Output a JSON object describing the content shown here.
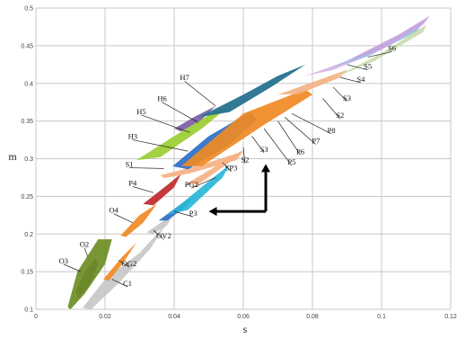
{
  "chart_data": {
    "type": "area",
    "xlabel": "s",
    "ylabel": "m",
    "xlim": [
      0,
      0.12
    ],
    "ylim": [
      0.1,
      0.5
    ],
    "xticks": [
      "0",
      "0.02",
      "0.04",
      "0.06",
      "0.08",
      "0.1",
      "0.12"
    ],
    "yticks": [
      "0.1",
      "0.15",
      "0.2",
      "0.25",
      "0.3",
      "0.35",
      "0.4",
      "0.45",
      "0.5"
    ],
    "xtick_values": [
      0,
      0.02,
      0.04,
      0.06,
      0.08,
      0.1,
      0.12
    ],
    "ytick_values": [
      0.1,
      0.15,
      0.2,
      0.25,
      0.3,
      0.35,
      0.4,
      0.45,
      0.5
    ],
    "grid": true,
    "regions": [
      {
        "name": "O3",
        "color": "#5a2d82",
        "points": [
          [
            0.0115,
            0.124
          ],
          [
            0.0145,
            0.152
          ],
          [
            0.0172,
            0.168
          ],
          [
            0.018,
            0.16
          ],
          [
            0.0155,
            0.132
          ],
          [
            0.0122,
            0.115
          ]
        ]
      },
      {
        "name": "O2",
        "color": "#6b8e23",
        "points": [
          [
            0.0092,
            0.103
          ],
          [
            0.012,
            0.15
          ],
          [
            0.018,
            0.193
          ],
          [
            0.022,
            0.193
          ],
          [
            0.02,
            0.16
          ],
          [
            0.014,
            0.12
          ],
          [
            0.01,
            0.1
          ]
        ]
      },
      {
        "name": "C1",
        "color": "#c8c8c8",
        "points": [
          [
            0.0135,
            0.102
          ],
          [
            0.02,
            0.14
          ],
          [
            0.03,
            0.175
          ],
          [
            0.038,
            0.215
          ],
          [
            0.033,
            0.18
          ],
          [
            0.024,
            0.135
          ],
          [
            0.016,
            0.1
          ]
        ]
      },
      {
        "name": "OG2",
        "color": "#f08a24",
        "points": [
          [
            0.0195,
            0.14
          ],
          [
            0.025,
            0.17
          ],
          [
            0.029,
            0.188
          ],
          [
            0.025,
            0.16
          ],
          [
            0.021,
            0.138
          ]
        ]
      },
      {
        "name": "O4",
        "color": "#f08a24",
        "points": [
          [
            0.0245,
            0.198
          ],
          [
            0.03,
            0.225
          ],
          [
            0.035,
            0.24
          ],
          [
            0.031,
            0.215
          ],
          [
            0.026,
            0.196
          ]
        ]
      },
      {
        "name": "OV2",
        "color": "#c8c8c8",
        "points": [
          [
            0.032,
            0.202
          ],
          [
            0.037,
            0.218
          ],
          [
            0.04,
            0.228
          ],
          [
            0.038,
            0.212
          ],
          [
            0.034,
            0.2
          ]
        ]
      },
      {
        "name": "P3",
        "color": "#2a6fc9",
        "points": [
          [
            0.0355,
            0.218
          ],
          [
            0.042,
            0.24
          ],
          [
            0.046,
            0.25
          ],
          [
            0.043,
            0.235
          ],
          [
            0.038,
            0.218
          ]
        ]
      },
      {
        "name": "PG2",
        "color": "#29b6d8",
        "points": [
          [
            0.038,
            0.225
          ],
          [
            0.05,
            0.27
          ],
          [
            0.056,
            0.292
          ],
          [
            0.054,
            0.275
          ],
          [
            0.044,
            0.232
          ]
        ]
      },
      {
        "name": "P4",
        "color": "#c0282d",
        "points": [
          [
            0.031,
            0.24
          ],
          [
            0.038,
            0.265
          ],
          [
            0.042,
            0.28
          ],
          [
            0.04,
            0.262
          ],
          [
            0.034,
            0.238
          ]
        ]
      },
      {
        "name": "S1",
        "color": "#f4b183",
        "points": [
          [
            0.036,
            0.278
          ],
          [
            0.048,
            0.292
          ],
          [
            0.06,
            0.31
          ],
          [
            0.058,
            0.298
          ],
          [
            0.044,
            0.28
          ],
          [
            0.037,
            0.274
          ]
        ]
      },
      {
        "name": "SP3",
        "color": "#f4b183",
        "points": [
          [
            0.043,
            0.265
          ],
          [
            0.052,
            0.29
          ],
          [
            0.06,
            0.312
          ],
          [
            0.056,
            0.295
          ],
          [
            0.047,
            0.266
          ]
        ]
      },
      {
        "name": "H3",
        "color": "#2a6fc9",
        "points": [
          [
            0.0395,
            0.29
          ],
          [
            0.05,
            0.33
          ],
          [
            0.062,
            0.362
          ],
          [
            0.064,
            0.352
          ],
          [
            0.056,
            0.318
          ],
          [
            0.044,
            0.286
          ]
        ]
      },
      {
        "name": "H5",
        "color": "#9acd32",
        "points": [
          [
            0.029,
            0.298
          ],
          [
            0.04,
            0.33
          ],
          [
            0.05,
            0.358
          ],
          [
            0.056,
            0.37
          ],
          [
            0.048,
            0.34
          ],
          [
            0.036,
            0.302
          ]
        ]
      },
      {
        "name": "H6",
        "color": "#7b5ea7",
        "points": [
          [
            0.04,
            0.34
          ],
          [
            0.046,
            0.356
          ],
          [
            0.052,
            0.37
          ],
          [
            0.048,
            0.352
          ],
          [
            0.042,
            0.336
          ]
        ]
      },
      {
        "name": "H7",
        "color": "#1f6e8c",
        "points": [
          [
            0.047,
            0.355
          ],
          [
            0.06,
            0.385
          ],
          [
            0.07,
            0.41
          ],
          [
            0.078,
            0.425
          ],
          [
            0.068,
            0.395
          ],
          [
            0.056,
            0.362
          ]
        ]
      },
      {
        "name": "P5",
        "color": "#f08a24",
        "points": [
          [
            0.042,
            0.29
          ],
          [
            0.06,
            0.36
          ],
          [
            0.078,
            0.392
          ],
          [
            0.08,
            0.385
          ],
          [
            0.066,
            0.345
          ],
          [
            0.048,
            0.29
          ]
        ]
      },
      {
        "name": "S2",
        "color": "#f4b183",
        "points": [
          [
            0.07,
            0.385
          ],
          [
            0.082,
            0.405
          ],
          [
            0.09,
            0.418
          ],
          [
            0.088,
            0.408
          ],
          [
            0.076,
            0.386
          ]
        ]
      },
      {
        "name": "S3",
        "color": "#d9b3e6",
        "points": [
          [
            0.078,
            0.41
          ],
          [
            0.09,
            0.43
          ],
          [
            0.1,
            0.452
          ],
          [
            0.098,
            0.44
          ],
          [
            0.086,
            0.418
          ]
        ]
      },
      {
        "name": "S4",
        "color": "#9bbfe3",
        "points": [
          [
            0.085,
            0.42
          ],
          [
            0.1,
            0.45
          ],
          [
            0.112,
            0.48
          ],
          [
            0.11,
            0.468
          ],
          [
            0.096,
            0.436
          ]
        ]
      },
      {
        "name": "S5",
        "color": "#c9dcae",
        "points": [
          [
            0.085,
            0.405
          ],
          [
            0.1,
            0.44
          ],
          [
            0.113,
            0.478
          ],
          [
            0.112,
            0.468
          ],
          [
            0.098,
            0.43
          ]
        ]
      },
      {
        "name": "S6",
        "color": "#c8a2e0",
        "points": [
          [
            0.09,
            0.43
          ],
          [
            0.105,
            0.465
          ],
          [
            0.114,
            0.49
          ],
          [
            0.112,
            0.478
          ],
          [
            0.1,
            0.445
          ]
        ]
      }
    ],
    "labels": [
      {
        "text": "O3",
        "x": 0.008,
        "y": 0.16,
        "tx": 0.013,
        "ty": 0.15
      },
      {
        "text": "O2",
        "x": 0.014,
        "y": 0.182,
        "tx": 0.015,
        "ty": 0.17
      },
      {
        "text": "C1",
        "x": 0.0265,
        "y": 0.13,
        "tx": 0.022,
        "ty": 0.14
      },
      {
        "text": "OG2",
        "x": 0.027,
        "y": 0.156,
        "tx": 0.024,
        "ty": 0.165
      },
      {
        "text": "O4",
        "x": 0.0225,
        "y": 0.227,
        "tx": 0.028,
        "ty": 0.215
      },
      {
        "text": "OV2",
        "x": 0.037,
        "y": 0.193,
        "tx": 0.034,
        "ty": 0.205
      },
      {
        "text": "P3",
        "x": 0.0455,
        "y": 0.223,
        "tx": 0.04,
        "ty": 0.23
      },
      {
        "text": "PG2",
        "x": 0.045,
        "y": 0.261,
        "tx": 0.052,
        "ty": 0.275
      },
      {
        "text": "P4",
        "x": 0.028,
        "y": 0.263,
        "tx": 0.034,
        "ty": 0.255
      },
      {
        "text": "S1",
        "x": 0.027,
        "y": 0.288,
        "tx": 0.037,
        "ty": 0.287
      },
      {
        "text": "SP3",
        "x": 0.0565,
        "y": 0.283,
        "tx": 0.054,
        "ty": 0.295
      },
      {
        "text": "H3",
        "x": 0.028,
        "y": 0.325,
        "tx": 0.044,
        "ty": 0.31
      },
      {
        "text": "H5",
        "x": 0.0305,
        "y": 0.358,
        "tx": 0.0445,
        "ty": 0.335
      },
      {
        "text": "H6",
        "x": 0.0365,
        "y": 0.375,
        "tx": 0.047,
        "ty": 0.348
      },
      {
        "text": "H7",
        "x": 0.043,
        "y": 0.403,
        "tx": 0.052,
        "ty": 0.37
      },
      {
        "text": "S2",
        "x": 0.0605,
        "y": 0.294,
        "tx": 0.06,
        "ty": 0.315
      },
      {
        "text": "S3",
        "x": 0.066,
        "y": 0.308,
        "tx": 0.0625,
        "ty": 0.33
      },
      {
        "text": "P5",
        "x": 0.074,
        "y": 0.291,
        "tx": 0.066,
        "ty": 0.34
      },
      {
        "text": "P6",
        "x": 0.0765,
        "y": 0.305,
        "tx": 0.07,
        "ty": 0.35
      },
      {
        "text": "P7",
        "x": 0.081,
        "y": 0.319,
        "tx": 0.072,
        "ty": 0.355
      },
      {
        "text": "P8",
        "x": 0.0855,
        "y": 0.333,
        "tx": 0.074,
        "ty": 0.36
      },
      {
        "text": "S2",
        "x": 0.088,
        "y": 0.353,
        "tx": 0.083,
        "ty": 0.38
      },
      {
        "text": "S3",
        "x": 0.09,
        "y": 0.376,
        "tx": 0.086,
        "ty": 0.395
      },
      {
        "text": "S4",
        "x": 0.094,
        "y": 0.401,
        "tx": 0.088,
        "ty": 0.408
      },
      {
        "text": "S5",
        "x": 0.096,
        "y": 0.418,
        "tx": 0.09,
        "ty": 0.425
      },
      {
        "text": "S6",
        "x": 0.103,
        "y": 0.442,
        "tx": 0.096,
        "ty": 0.435
      }
    ],
    "arrows": [
      {
        "from": [
          0.0665,
          0.23
        ],
        "to": [
          0.05,
          0.23
        ]
      },
      {
        "from": [
          0.0665,
          0.23
        ],
        "to": [
          0.0665,
          0.293
        ]
      }
    ]
  }
}
